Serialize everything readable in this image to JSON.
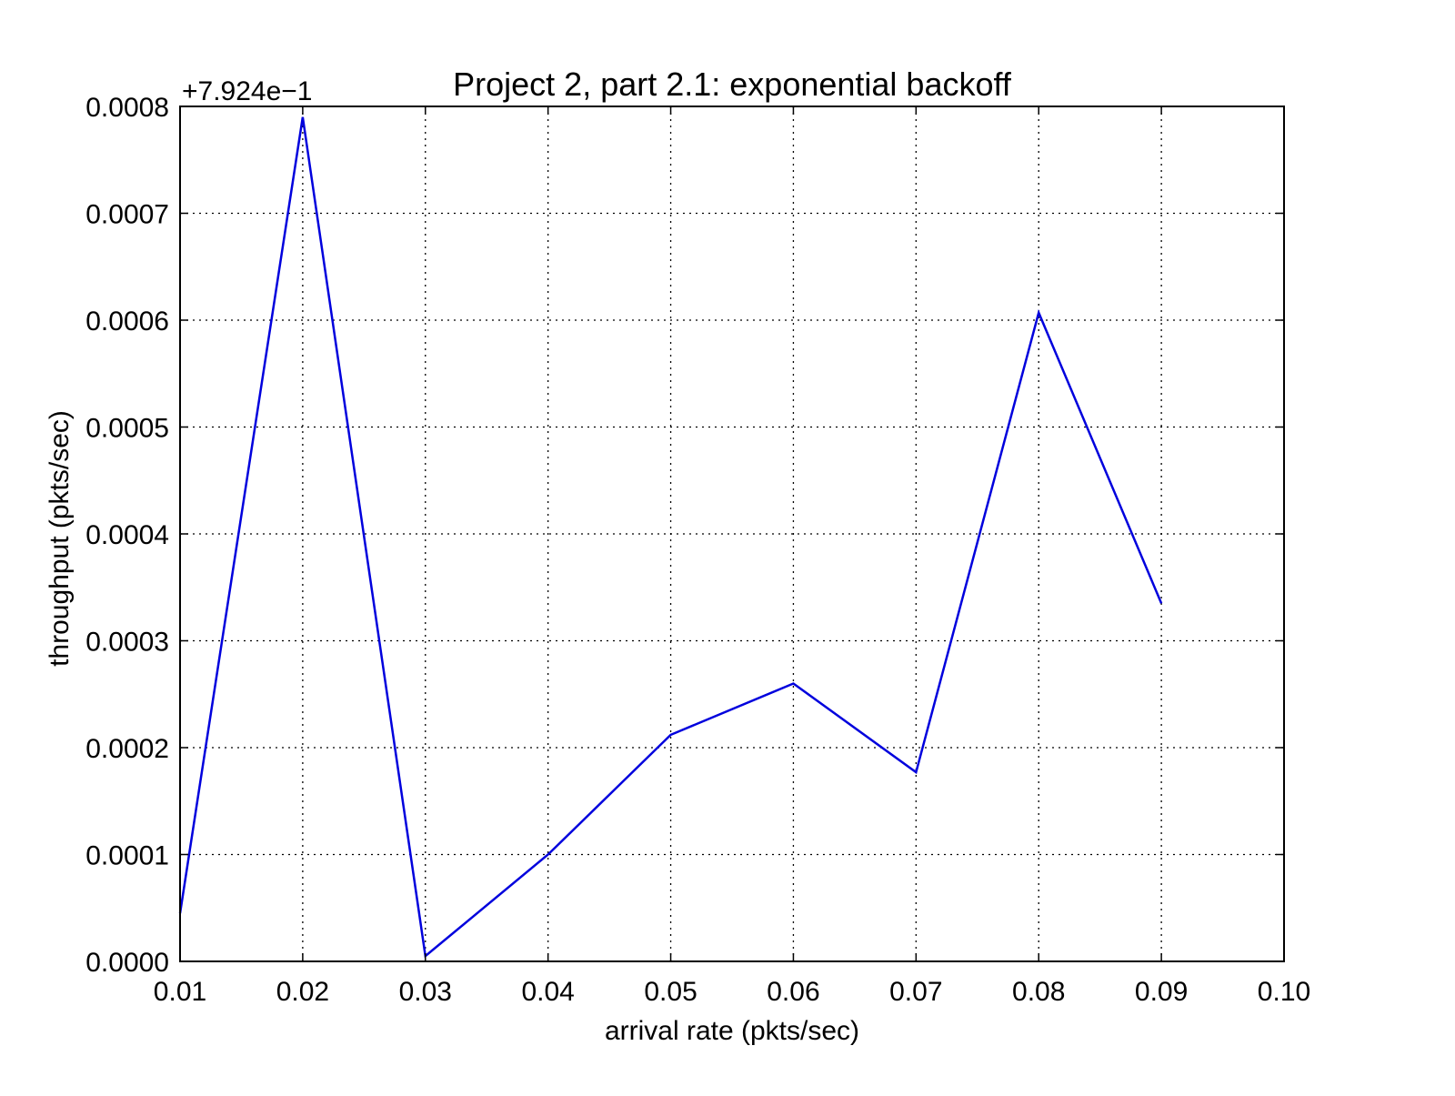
{
  "chart_data": {
    "type": "line",
    "title": "Project 2, part 2.1: exponential backoff",
    "xlabel": "arrival rate (pkts/sec)",
    "ylabel": "throughput (pkts/sec)",
    "y_offset_label": "+7.924e−1",
    "y_offset": 0.7924,
    "xlim": [
      0.01,
      0.1
    ],
    "ylim": [
      0.0,
      0.0008
    ],
    "x_ticks": [
      0.01,
      0.02,
      0.03,
      0.04,
      0.05,
      0.06,
      0.07,
      0.08,
      0.09,
      0.1
    ],
    "x_tick_labels": [
      "0.01",
      "0.02",
      "0.03",
      "0.04",
      "0.05",
      "0.06",
      "0.07",
      "0.08",
      "0.09",
      "0.10"
    ],
    "y_ticks": [
      0.0,
      0.0001,
      0.0002,
      0.0003,
      0.0004,
      0.0005,
      0.0006,
      0.0007,
      0.0008
    ],
    "y_tick_labels": [
      "0.0000",
      "0.0001",
      "0.0002",
      "0.0003",
      "0.0004",
      "0.0005",
      "0.0006",
      "0.0007",
      "0.0008"
    ],
    "grid": true,
    "series": [
      {
        "color": "#0000dd",
        "x": [
          0.01,
          0.02,
          0.03,
          0.04,
          0.05,
          0.06,
          0.07,
          0.08,
          0.09
        ],
        "y": [
          4.5e-05,
          0.00079,
          5e-06,
          0.0001,
          0.000212,
          0.00026,
          0.000177,
          0.000607,
          0.000335
        ]
      }
    ]
  }
}
